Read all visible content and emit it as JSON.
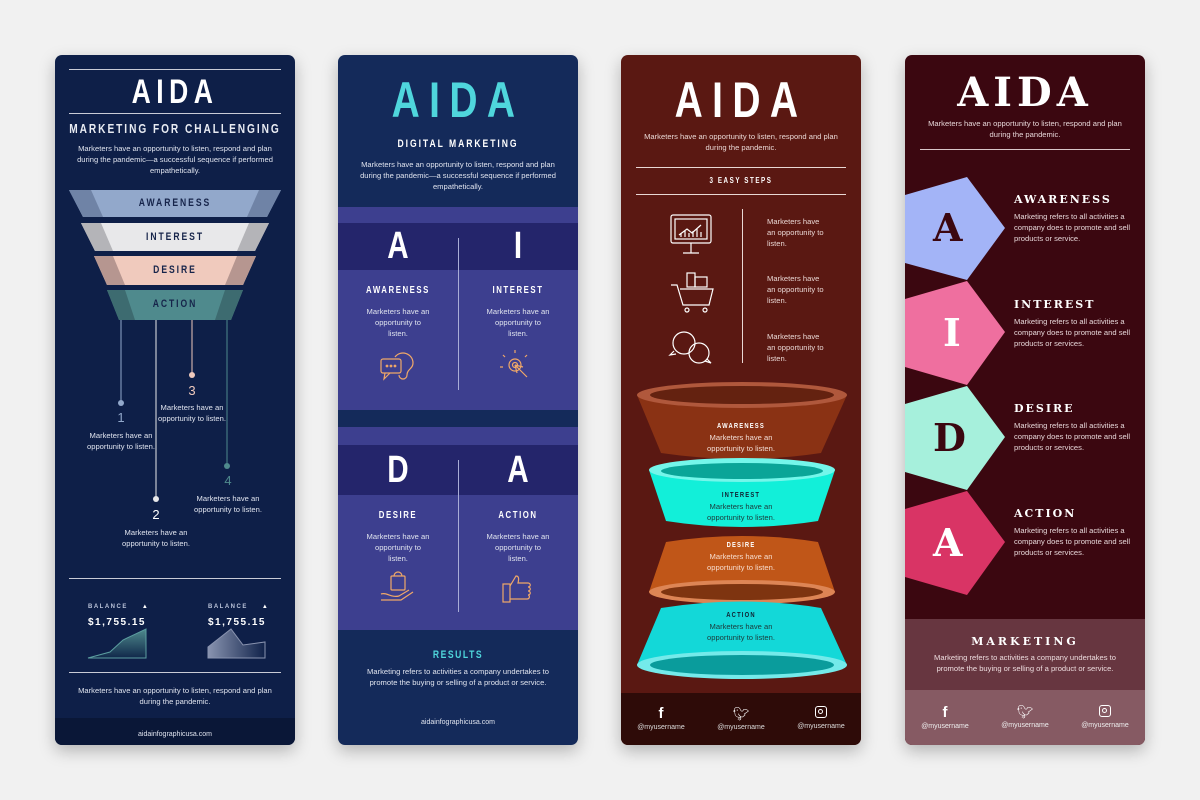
{
  "p1": {
    "title": "AIDA",
    "subtitle": "MARKETING FOR CHALLENGING",
    "intro": "Marketers have an opportunity to listen, respond and plan during the pandemic—a successful sequence if performed empathetically.",
    "funnel": [
      {
        "label": "AWARENESS",
        "color": "#92a8cb"
      },
      {
        "label": "INTEREST",
        "color": "#e8e8ea"
      },
      {
        "label": "DESIRE",
        "color": "#f0cabd"
      },
      {
        "label": "ACTION",
        "color": "#4f8a8d"
      }
    ],
    "steps": [
      {
        "num": "1",
        "text": "Marketers have an opportunity to listen."
      },
      {
        "num": "2",
        "text": "Marketers have an opportunity to listen."
      },
      {
        "num": "3",
        "text": "Marketers have an opportunity to listen."
      },
      {
        "num": "4",
        "text": "Marketers have an opportunity to listen."
      }
    ],
    "balances": [
      {
        "label": "BALANCE",
        "value": "$1,755.15"
      },
      {
        "label": "BALANCE",
        "value": "$1,755.15"
      }
    ],
    "footer_text": "Marketers have an opportunity to listen, respond and plan during the pandemic.",
    "url": "aidainfographicusa.com"
  },
  "p2": {
    "title": "AIDA",
    "subtitle": "DIGITAL MARKETING",
    "intro": "Marketers have an opportunity to listen, respond and plan during the pandemic—a successful sequence if performed empathetically.",
    "accent": "#4fd6dc",
    "cells": [
      {
        "letter": "A",
        "label": "AWARENESS",
        "text": "Marketers have an opportunity to listen.",
        "icon": "chat-ear-icon"
      },
      {
        "letter": "I",
        "label": "INTEREST",
        "text": "Marketers have an opportunity to listen.",
        "icon": "click-icon"
      },
      {
        "letter": "D",
        "label": "DESIRE",
        "text": "Marketers have an opportunity to listen.",
        "icon": "shopping-bag-hand-icon"
      },
      {
        "letter": "A",
        "label": "ACTION",
        "text": "Marketers have an opportunity to listen.",
        "icon": "thumbs-up-icon"
      }
    ],
    "results_title": "RESULTS",
    "results_text": "Marketing refers to activities a company undertakes to promote the buying or selling of a product or service.",
    "url": "aidainfographicusa.com"
  },
  "p3": {
    "title": "AIDA",
    "intro": "Marketers have an opportunity to listen, respond and plan during the pandemic.",
    "steps_title": "3 EASY STEPS",
    "steps": [
      {
        "icon": "monitor-chart-icon",
        "text": "Marketers have an opportunity to listen."
      },
      {
        "icon": "shopping-cart-icon",
        "text": "Marketers have an opportunity to listen."
      },
      {
        "icon": "chat-bubbles-icon",
        "text": "Marketers have an opportunity to listen."
      }
    ],
    "cones": [
      {
        "label": "AWARENESS",
        "text": "Marketers have an opportunity to listen.",
        "color": "#8a3214"
      },
      {
        "label": "INTEREST",
        "text": "Marketers have an opportunity to listen.",
        "color": "#12efd9"
      },
      {
        "label": "DESIRE",
        "text": "Marketers have an opportunity to listen.",
        "color": "#c05618"
      },
      {
        "label": "ACTION",
        "text": "Marketers have an opportunity to listen.",
        "color": "#13d8d8"
      }
    ],
    "social": [
      {
        "icon": "facebook-icon",
        "handle": "@myusername"
      },
      {
        "icon": "twitter-icon",
        "handle": "@myusername"
      },
      {
        "icon": "instagram-icon",
        "handle": "@myusername"
      }
    ]
  },
  "p4": {
    "title": "AIDA",
    "intro": "Marketers have an opportunity to listen, respond and plan during the pandemic.",
    "items": [
      {
        "letter": "A",
        "label": "AWARENESS",
        "text": "Marketing refers to all activities a company does to promote and sell products or service.",
        "color": "#a3b4f7"
      },
      {
        "letter": "I",
        "label": "INTEREST",
        "text": "Marketing refers to all activities a company does to promote and sell products or services.",
        "color": "#ef6f9f"
      },
      {
        "letter": "D",
        "label": "DESIRE",
        "text": "Marketing refers to all activities a company does to promote and sell products or services.",
        "color": "#a6f0dc"
      },
      {
        "letter": "A",
        "label": "ACTION",
        "text": "Marketing refers to all activities a company does to promote and sell products or services.",
        "color": "#d93465"
      }
    ],
    "marketing_title": "MARKETING",
    "marketing_text": "Marketing refers to activities a company undertakes to promote the buying or selling of a product or service.",
    "social": [
      {
        "icon": "facebook-icon",
        "handle": "@myusername"
      },
      {
        "icon": "twitter-icon",
        "handle": "@myusername"
      },
      {
        "icon": "instagram-icon",
        "handle": "@myusername"
      }
    ]
  }
}
